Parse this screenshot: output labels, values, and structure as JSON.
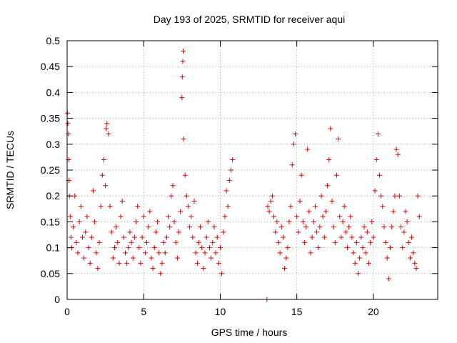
{
  "chart_data": {
    "type": "scatter",
    "title": "Day 193 of 2025, SRMTID for receiver aqui",
    "xlabel": "GPS time / hours",
    "ylabel": "SRMTID / TECUs",
    "xlim": [
      0,
      24.2
    ],
    "ylim": [
      0,
      0.5
    ],
    "xticks": [
      0,
      5,
      10,
      15,
      20
    ],
    "xtick_labels": [
      "0",
      "5",
      "10",
      "15",
      "20"
    ],
    "yticks": [
      0,
      0.05,
      0.1,
      0.15,
      0.2,
      0.25,
      0.3,
      0.35,
      0.4,
      0.45,
      0.5
    ],
    "ytick_labels": [
      "0",
      "0.05",
      "0.1",
      "0.15",
      "0.2",
      "0.25",
      "0.3",
      "0.35",
      "0.4",
      "0.45",
      "0.5"
    ],
    "grid": true,
    "marker": "+",
    "color": "#e00000",
    "series": [
      {
        "name": "SRMTID",
        "points": [
          [
            0.02,
            0.36
          ],
          [
            0.05,
            0.34
          ],
          [
            0.08,
            0.32
          ],
          [
            0.1,
            0.27
          ],
          [
            0.12,
            0.23
          ],
          [
            0.15,
            0.2
          ],
          [
            0.2,
            0.16
          ],
          [
            0.25,
            0.12
          ],
          [
            0.3,
            0.1
          ],
          [
            0.4,
            0.14
          ],
          [
            0.5,
            0.2
          ],
          [
            0.6,
            0.11
          ],
          [
            0.7,
            0.09
          ],
          [
            0.8,
            0.15
          ],
          [
            0.9,
            0.18
          ],
          [
            1.0,
            0.12
          ],
          [
            1.1,
            0.08
          ],
          [
            1.2,
            0.13
          ],
          [
            1.3,
            0.16
          ],
          [
            1.4,
            0.1
          ],
          [
            1.5,
            0.07
          ],
          [
            1.6,
            0.12
          ],
          [
            1.7,
            0.21
          ],
          [
            1.8,
            0.15
          ],
          [
            1.9,
            0.09
          ],
          [
            2.0,
            0.06
          ],
          [
            2.1,
            0.11
          ],
          [
            2.2,
            0.18
          ],
          [
            2.3,
            0.24
          ],
          [
            2.4,
            0.27
          ],
          [
            2.5,
            0.22
          ],
          [
            2.55,
            0.33
          ],
          [
            2.6,
            0.34
          ],
          [
            2.7,
            0.32
          ],
          [
            2.8,
            0.18
          ],
          [
            2.9,
            0.13
          ],
          [
            3.0,
            0.08
          ],
          [
            3.1,
            0.1
          ],
          [
            3.2,
            0.14
          ],
          [
            3.3,
            0.11
          ],
          [
            3.4,
            0.07
          ],
          [
            3.5,
            0.16
          ],
          [
            3.6,
            0.19
          ],
          [
            3.7,
            0.12
          ],
          [
            3.8,
            0.09
          ],
          [
            3.9,
            0.07
          ],
          [
            4.0,
            0.1
          ],
          [
            4.1,
            0.13
          ],
          [
            4.2,
            0.11
          ],
          [
            4.3,
            0.08
          ],
          [
            4.4,
            0.12
          ],
          [
            4.5,
            0.15
          ],
          [
            4.6,
            0.18
          ],
          [
            4.7,
            0.1
          ],
          [
            4.8,
            0.07
          ],
          [
            4.9,
            0.12
          ],
          [
            5.0,
            0.16
          ],
          [
            5.1,
            0.09
          ],
          [
            5.2,
            0.11
          ],
          [
            5.3,
            0.14
          ],
          [
            5.4,
            0.17
          ],
          [
            5.5,
            0.08
          ],
          [
            5.6,
            0.06
          ],
          [
            5.7,
            0.1
          ],
          [
            5.8,
            0.13
          ],
          [
            5.9,
            0.15
          ],
          [
            6.0,
            0.09
          ],
          [
            6.1,
            0.05
          ],
          [
            6.2,
            0.07
          ],
          [
            6.3,
            0.11
          ],
          [
            6.4,
            0.09
          ],
          [
            6.5,
            0.12
          ],
          [
            6.6,
            0.16
          ],
          [
            6.7,
            0.14
          ],
          [
            6.8,
            0.2
          ],
          [
            6.9,
            0.22
          ],
          [
            7.0,
            0.15
          ],
          [
            7.1,
            0.11
          ],
          [
            7.2,
            0.08
          ],
          [
            7.3,
            0.13
          ],
          [
            7.4,
            0.17
          ],
          [
            7.5,
            0.39
          ],
          [
            7.52,
            0.43
          ],
          [
            7.55,
            0.46
          ],
          [
            7.58,
            0.48
          ],
          [
            7.6,
            0.31
          ],
          [
            7.7,
            0.24
          ],
          [
            7.8,
            0.2
          ],
          [
            7.9,
            0.18
          ],
          [
            8.0,
            0.14
          ],
          [
            8.1,
            0.16
          ],
          [
            8.2,
            0.12
          ],
          [
            8.3,
            0.19
          ],
          [
            8.4,
            0.09
          ],
          [
            8.5,
            0.07
          ],
          [
            8.6,
            0.11
          ],
          [
            8.7,
            0.14
          ],
          [
            8.8,
            0.1
          ],
          [
            8.9,
            0.06
          ],
          [
            9.0,
            0.09
          ],
          [
            9.1,
            0.12
          ],
          [
            9.2,
            0.15
          ],
          [
            9.3,
            0.1
          ],
          [
            9.4,
            0.08
          ],
          [
            9.5,
            0.11
          ],
          [
            9.6,
            0.14
          ],
          [
            9.7,
            0.09
          ],
          [
            9.8,
            0.12
          ],
          [
            9.9,
            0.07
          ],
          [
            10.0,
            0.1
          ],
          [
            10.1,
            0.05
          ],
          [
            10.2,
            0.13
          ],
          [
            10.3,
            0.16
          ],
          [
            10.4,
            0.21
          ],
          [
            10.5,
            0.18
          ],
          [
            10.6,
            0.23
          ],
          [
            10.7,
            0.25
          ],
          [
            10.8,
            0.27
          ],
          [
            13.05,
            0.0
          ],
          [
            13.1,
            0.18
          ],
          [
            13.2,
            0.17
          ],
          [
            13.3,
            0.19
          ],
          [
            13.4,
            0.2
          ],
          [
            13.5,
            0.16
          ],
          [
            13.6,
            0.13
          ],
          [
            13.7,
            0.15
          ],
          [
            13.8,
            0.11
          ],
          [
            13.9,
            0.09
          ],
          [
            14.0,
            0.14
          ],
          [
            14.1,
            0.12
          ],
          [
            14.2,
            0.06
          ],
          [
            14.3,
            0.08
          ],
          [
            14.4,
            0.1
          ],
          [
            14.5,
            0.15
          ],
          [
            14.6,
            0.18
          ],
          [
            14.7,
            0.26
          ],
          [
            14.8,
            0.3
          ],
          [
            14.9,
            0.32
          ],
          [
            15.0,
            0.16
          ],
          [
            15.1,
            0.13
          ],
          [
            15.2,
            0.19
          ],
          [
            15.3,
            0.24
          ],
          [
            15.4,
            0.15
          ],
          [
            15.5,
            0.11
          ],
          [
            15.6,
            0.14
          ],
          [
            15.7,
            0.29
          ],
          [
            15.8,
            0.17
          ],
          [
            15.9,
            0.09
          ],
          [
            16.0,
            0.12
          ],
          [
            16.1,
            0.15
          ],
          [
            16.2,
            0.18
          ],
          [
            16.3,
            0.13
          ],
          [
            16.4,
            0.1
          ],
          [
            16.5,
            0.14
          ],
          [
            16.6,
            0.2
          ],
          [
            16.7,
            0.16
          ],
          [
            16.8,
            0.12
          ],
          [
            16.9,
            0.17
          ],
          [
            17.0,
            0.22
          ],
          [
            17.1,
            0.27
          ],
          [
            17.2,
            0.33
          ],
          [
            17.3,
            0.19
          ],
          [
            17.4,
            0.14
          ],
          [
            17.5,
            0.11
          ],
          [
            17.6,
            0.24
          ],
          [
            17.7,
            0.31
          ],
          [
            17.8,
            0.16
          ],
          [
            17.9,
            0.12
          ],
          [
            18.0,
            0.15
          ],
          [
            18.1,
            0.18
          ],
          [
            18.2,
            0.13
          ],
          [
            18.3,
            0.1
          ],
          [
            18.4,
            0.14
          ],
          [
            18.5,
            0.16
          ],
          [
            18.6,
            0.12
          ],
          [
            18.7,
            0.09
          ],
          [
            18.8,
            0.07
          ],
          [
            18.9,
            0.11
          ],
          [
            19.0,
            0.05
          ],
          [
            19.1,
            0.08
          ],
          [
            19.2,
            0.12
          ],
          [
            19.3,
            0.1
          ],
          [
            19.4,
            0.14
          ],
          [
            19.5,
            0.09
          ],
          [
            19.6,
            0.13
          ],
          [
            19.7,
            0.07
          ],
          [
            19.8,
            0.11
          ],
          [
            19.9,
            0.15
          ],
          [
            20.0,
            0.12
          ],
          [
            20.1,
            0.21
          ],
          [
            20.2,
            0.27
          ],
          [
            20.3,
            0.32
          ],
          [
            20.4,
            0.24
          ],
          [
            20.5,
            0.2
          ],
          [
            20.6,
            0.18
          ],
          [
            20.7,
            0.14
          ],
          [
            20.8,
            0.11
          ],
          [
            20.9,
            0.08
          ],
          [
            21.0,
            0.04
          ],
          [
            21.1,
            0.1
          ],
          [
            21.2,
            0.14
          ],
          [
            21.3,
            0.17
          ],
          [
            21.4,
            0.2
          ],
          [
            21.5,
            0.29
          ],
          [
            21.6,
            0.28
          ],
          [
            21.7,
            0.2
          ],
          [
            21.8,
            0.14
          ],
          [
            21.9,
            0.1
          ],
          [
            22.0,
            0.13
          ],
          [
            22.1,
            0.17
          ],
          [
            22.2,
            0.15
          ],
          [
            22.3,
            0.11
          ],
          [
            22.4,
            0.08
          ],
          [
            22.5,
            0.12
          ],
          [
            22.6,
            0.09
          ],
          [
            22.7,
            0.07
          ],
          [
            22.8,
            0.06
          ],
          [
            22.9,
            0.2
          ],
          [
            23.0,
            0.16
          ]
        ]
      }
    ]
  }
}
